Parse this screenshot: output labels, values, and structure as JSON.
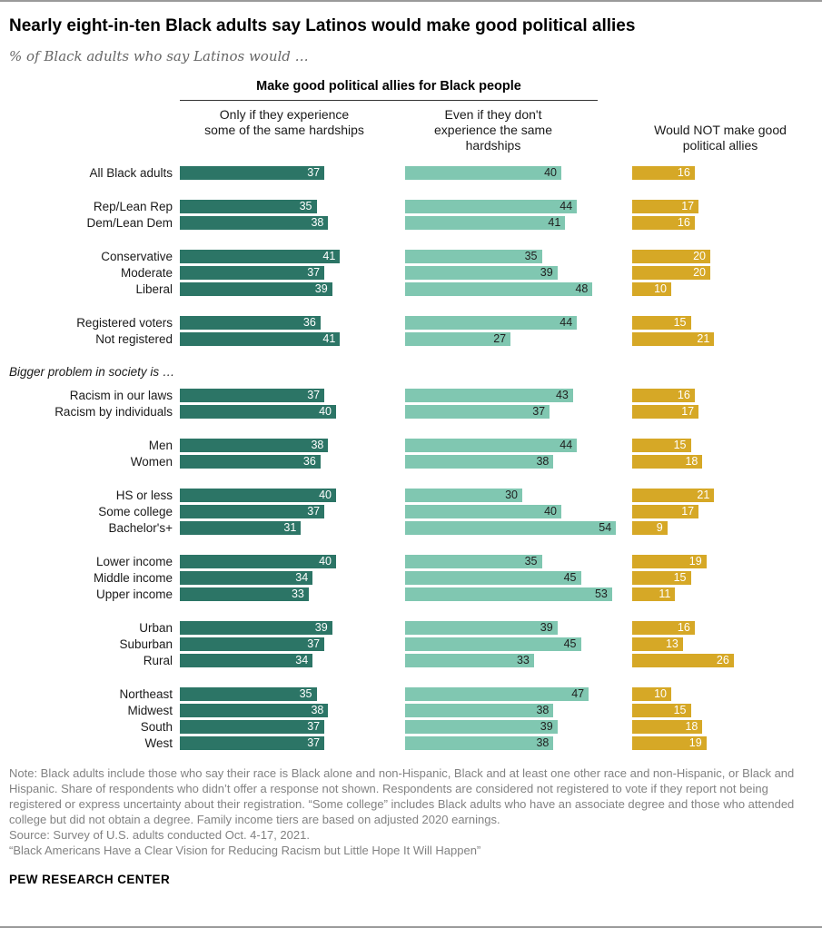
{
  "title": "Nearly eight-in-ten Black adults say Latinos would make good political allies",
  "subtitle": "% of Black adults who say Latinos would …",
  "chart_data": {
    "type": "bar",
    "orientation": "horizontal",
    "xlim": [
      0,
      60
    ],
    "grid": false,
    "legend_position": "column-headers",
    "group_header": "Make good political allies for Black people",
    "series": [
      {
        "id": "only-if-hardships",
        "name": "Only if they experience some of the same hardships",
        "color": "#2c7566",
        "label_color": "#ffffff"
      },
      {
        "id": "even-if-no-hardships",
        "name": "Even if they don't experience the same hardships",
        "color": "#80c7b1",
        "label_color": "#1f1f1f"
      },
      {
        "id": "would-not-make-allies",
        "name": "Would NOT make good political allies",
        "color": "#d6a826",
        "label_color": "#ffffff"
      }
    ],
    "groups": [
      {
        "rows": [
          {
            "label": "All Black adults",
            "values": [
              37,
              40,
              16
            ]
          }
        ]
      },
      {
        "rows": [
          {
            "label": "Rep/Lean Rep",
            "values": [
              35,
              44,
              17
            ]
          },
          {
            "label": "Dem/Lean Dem",
            "values": [
              38,
              41,
              16
            ]
          }
        ]
      },
      {
        "rows": [
          {
            "label": "Conservative",
            "values": [
              41,
              35,
              20
            ]
          },
          {
            "label": "Moderate",
            "values": [
              37,
              39,
              20
            ]
          },
          {
            "label": "Liberal",
            "values": [
              39,
              48,
              10
            ]
          }
        ]
      },
      {
        "rows": [
          {
            "label": "Registered voters",
            "values": [
              36,
              44,
              15
            ]
          },
          {
            "label": "Not registered",
            "values": [
              41,
              27,
              21
            ]
          }
        ]
      },
      {
        "section_label": "Bigger problem in society is …",
        "rows": [
          {
            "label": "Racism in our laws",
            "values": [
              37,
              43,
              16
            ]
          },
          {
            "label": "Racism by individuals",
            "values": [
              40,
              37,
              17
            ]
          }
        ]
      },
      {
        "rows": [
          {
            "label": "Men",
            "values": [
              38,
              44,
              15
            ]
          },
          {
            "label": "Women",
            "values": [
              36,
              38,
              18
            ]
          }
        ]
      },
      {
        "rows": [
          {
            "label": "HS or less",
            "values": [
              40,
              30,
              21
            ]
          },
          {
            "label": "Some college",
            "values": [
              37,
              40,
              17
            ]
          },
          {
            "label": "Bachelor's+",
            "values": [
              31,
              54,
              9
            ]
          }
        ]
      },
      {
        "rows": [
          {
            "label": "Lower income",
            "values": [
              40,
              35,
              19
            ]
          },
          {
            "label": "Middle income",
            "values": [
              34,
              45,
              15
            ]
          },
          {
            "label": "Upper income",
            "values": [
              33,
              53,
              11
            ]
          }
        ]
      },
      {
        "rows": [
          {
            "label": "Urban",
            "values": [
              39,
              39,
              16
            ]
          },
          {
            "label": "Suburban",
            "values": [
              37,
              45,
              13
            ]
          },
          {
            "label": "Rural",
            "values": [
              34,
              33,
              26
            ]
          }
        ]
      },
      {
        "rows": [
          {
            "label": "Northeast",
            "values": [
              35,
              47,
              10
            ]
          },
          {
            "label": "Midwest",
            "values": [
              38,
              38,
              15
            ]
          },
          {
            "label": "South",
            "values": [
              37,
              39,
              18
            ]
          },
          {
            "label": "West",
            "values": [
              37,
              38,
              19
            ]
          }
        ]
      }
    ]
  },
  "notes": {
    "note": "Note: Black adults include those who say their race is Black alone and non-Hispanic, Black and at least one other race and non-Hispanic, or Black and Hispanic. Share of respondents who didn’t offer a response not shown. Respondents are considered not registered to vote if they report not being registered or express uncertainty about their registration. “Some college” includes Black adults who have an associate degree and those who attended college but did not obtain a degree. Family income tiers are based on adjusted 2020 earnings.",
    "source": "Source: Survey of U.S. adults conducted Oct. 4-17, 2021.",
    "citation": "“Black Americans Have a Clear Vision for Reducing Racism but Little Hope It Will Happen”"
  },
  "footer": "PEW RESEARCH CENTER"
}
